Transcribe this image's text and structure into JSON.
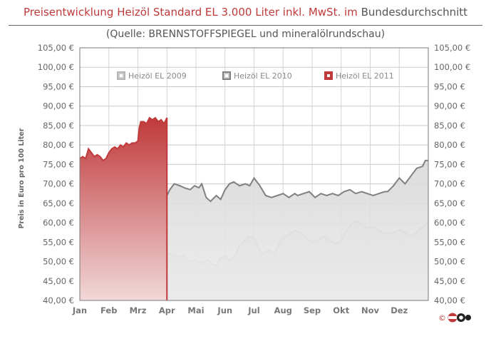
{
  "title": {
    "main": "Preisentwicklung Heizöl Standard EL 3.000 Liter inkl. MwSt. im",
    "suffix": "Bundesdurchschnitt",
    "source": "(Quelle: BRENNSTOFFSPIEGEL  und  mineralölrundschau)"
  },
  "colors": {
    "series_2009": "#b4b4b4",
    "series_2010": "#808080",
    "series_2011": "#c0393b",
    "title_red": "#c0393b"
  },
  "logo": {
    "symbol": "©",
    "icon": "brennstoffspiegel-logo-icon"
  },
  "chart_data": {
    "type": "area",
    "title": "Preisentwicklung Heizöl Standard EL 3.000 Liter inkl. MwSt. im Bundesdurchschnitt",
    "subtitle": "(Quelle: BRENNSTOFFSPIEGEL  und  mineralölrundschau)",
    "xlabel": "",
    "ylabel": "Preis in Euro pro 100 Liter",
    "ylim": [
      40,
      105
    ],
    "yticks": [
      "40,00 €",
      "45,00 €",
      "50,00 €",
      "55,00 €",
      "60,00 €",
      "65,00 €",
      "70,00 €",
      "75,00 €",
      "80,00 €",
      "85,00 €",
      "90,00 €",
      "95,00 €",
      "100,00 €",
      "105,00 €"
    ],
    "yticks_right": [
      "40,00 €",
      "45,00 €",
      "50,00 €",
      "55,00 €",
      "60,00 €",
      "65,00 €",
      "70,00 €",
      "75,00 €",
      "80,00 €",
      "85,00 €",
      "90,00 €",
      "95,00 €",
      "100,00 €",
      "105,00 €"
    ],
    "categories": [
      "Jan",
      "Feb",
      "Mrz",
      "Apr",
      "Mai",
      "Jun",
      "Jul",
      "Aug",
      "Sep",
      "Okt",
      "Nov",
      "Dez"
    ],
    "grid": true,
    "legend": "top-center",
    "series": [
      {
        "name": "Heizöl EL 2009",
        "x": [
          0,
          0.1,
          0.25,
          0.4,
          0.55,
          0.7,
          0.9,
          1.0,
          1.15,
          1.3,
          1.5,
          1.7,
          1.85,
          2.0,
          2.15,
          2.3,
          2.5,
          2.7,
          2.85,
          3.0,
          3.1,
          3.2,
          3.4,
          3.6,
          3.8,
          4.0,
          4.2,
          4.4,
          4.55,
          4.7,
          4.85,
          5.0,
          5.1,
          5.3,
          5.5,
          5.7,
          5.8,
          6.0,
          6.15,
          6.3,
          6.5,
          6.7,
          6.9,
          7.0,
          7.2,
          7.4,
          7.6,
          7.8,
          8.0,
          8.2,
          8.4,
          8.6,
          8.8,
          9.0,
          9.2,
          9.4,
          9.5,
          9.7,
          9.9,
          10.0,
          10.2,
          10.4,
          10.6,
          10.8,
          11.0,
          11.2,
          11.4,
          11.6,
          11.8,
          12.0
        ],
        "values": [
          55.5,
          58,
          57.5,
          56.5,
          54,
          52.5,
          54.5,
          55,
          53,
          51.5,
          53,
          51.5,
          52.5,
          51,
          50,
          51.5,
          52,
          51.5,
          51,
          51.5,
          52,
          51.5,
          51.5,
          51.5,
          50,
          50.5,
          49.5,
          50.5,
          49.5,
          49,
          51,
          51.5,
          50.5,
          51,
          54,
          55.5,
          56.5,
          56,
          53.5,
          52,
          53,
          52,
          55,
          56,
          57,
          58,
          57.5,
          56,
          55,
          55.5,
          56.5,
          55.5,
          54.5,
          55.5,
          58,
          60,
          60.5,
          59.5,
          58.5,
          59,
          58.5,
          57.5,
          57,
          57.5,
          58,
          57.5,
          56.5,
          57.5,
          59,
          60
        ]
      },
      {
        "name": "Heizöl EL 2010",
        "x": [
          0,
          0.1,
          0.2,
          0.3,
          0.45,
          0.55,
          0.7,
          0.85,
          1.0,
          1.15,
          1.3,
          1.45,
          1.6,
          1.75,
          1.9,
          2.0,
          2.2,
          2.4,
          2.6,
          2.8,
          3.0,
          3.1,
          3.25,
          3.45,
          3.6,
          3.8,
          3.95,
          4.1,
          4.2,
          4.35,
          4.5,
          4.7,
          4.85,
          5.0,
          5.15,
          5.3,
          5.5,
          5.7,
          5.85,
          6.0,
          6.2,
          6.4,
          6.6,
          6.8,
          7.0,
          7.2,
          7.4,
          7.5,
          7.7,
          7.9,
          8.1,
          8.3,
          8.5,
          8.7,
          8.9,
          9.1,
          9.3,
          9.5,
          9.7,
          9.9,
          10.1,
          10.3,
          10.5,
          10.6,
          10.8,
          11.0,
          11.2,
          11.4,
          11.6,
          11.8,
          11.9,
          12.0
        ],
        "values": [
          61,
          63,
          63.5,
          62,
          61,
          60,
          60.5,
          59,
          59,
          60.5,
          61,
          62,
          62.5,
          63,
          63.5,
          64.5,
          64.5,
          65.5,
          66,
          66.5,
          67,
          68.5,
          70,
          69.5,
          69,
          68.5,
          69.5,
          69,
          70,
          66.5,
          65.5,
          67,
          66,
          68.5,
          70,
          70.5,
          69.5,
          70,
          69.5,
          71.5,
          69.5,
          67,
          66.5,
          67,
          67.5,
          66.5,
          67.5,
          67,
          67.5,
          68,
          66.5,
          67.5,
          67,
          67.5,
          67,
          68,
          68.5,
          67.5,
          68,
          67.5,
          67,
          67.5,
          68,
          68,
          69.5,
          71.5,
          70,
          72,
          74,
          74.5,
          76,
          76
        ]
      },
      {
        "name": "Heizöl EL 2011",
        "x": [
          0,
          0.1,
          0.2,
          0.3,
          0.4,
          0.5,
          0.6,
          0.7,
          0.8,
          0.9,
          1.0,
          1.1,
          1.2,
          1.3,
          1.4,
          1.5,
          1.6,
          1.7,
          1.8,
          1.9,
          2.0,
          2.05,
          2.1,
          2.2,
          2.3,
          2.4,
          2.5,
          2.6,
          2.7,
          2.8,
          2.9,
          3.0
        ],
        "values": [
          76.5,
          77,
          76.5,
          79,
          78,
          77,
          77.5,
          77,
          76,
          76.5,
          78,
          79,
          79.5,
          79,
          80,
          79.5,
          80.5,
          80,
          80.5,
          80.5,
          81,
          84.5,
          86,
          86,
          85.5,
          87,
          86.5,
          87,
          86,
          86.5,
          85.5,
          87
        ]
      }
    ]
  }
}
